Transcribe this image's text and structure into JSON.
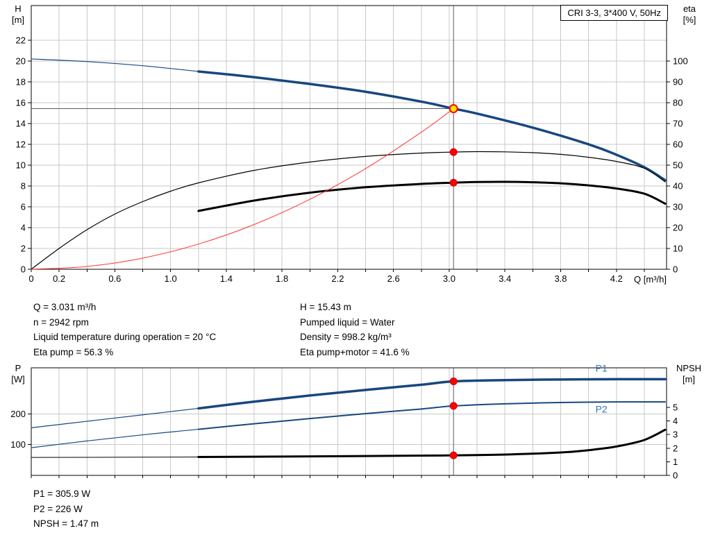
{
  "axis_titles": {
    "top_left_1": "H",
    "top_left_2": "[m]",
    "top_right_1": "eta",
    "top_right_2": "[%]",
    "x": "Q [m³/h]",
    "bottom_left_1": "P",
    "bottom_left_2": "[W]",
    "bottom_right_1": "NPSH",
    "bottom_right_2": "[m]"
  },
  "info_top_left": [
    "Q = 3.031 m³/h",
    "n = 2942 rpm",
    "Liquid temperature during operation = 20 °C",
    "Eta pump = 56.3 %"
  ],
  "info_top_right": [
    "H = 15.43 m",
    "Pumped liquid = Water",
    "Density = 998.2 kg/m³",
    "Eta pump+motor = 41.6 %"
  ],
  "info_bottom": [
    "P1 = 305.9 W",
    "P2 = 226 W",
    "NPSH = 1.47 m"
  ],
  "colors": {
    "curve_blue": "#17477e",
    "curve_black": "#000000",
    "curve_red": "#ff3333",
    "dot_red": "#ff0000",
    "duty_yellow": "#ffe600",
    "grid": "#c9c9c9",
    "label_blue": "#2e74b5",
    "duty_line": "#595959"
  },
  "chart_data": [
    {
      "type": "line",
      "title": "CRI 3-3, 3*400 V, 50Hz",
      "grid_color": "#c9c9c9",
      "x_axis": {
        "label": "Q [m³/h]",
        "min": 0,
        "max": 4.56,
        "grid_step": 0.2,
        "tick_values": [
          0,
          0.2,
          0.6,
          1.0,
          1.4,
          1.8,
          2.2,
          2.6,
          3.0,
          3.4,
          3.8,
          4.2
        ],
        "tick_labels": [
          "0",
          "0.2",
          "0.6",
          "1.0",
          "1.4",
          "1.8",
          "2.2",
          "2.6",
          "3.0",
          "3.4",
          "3.8",
          "4.2"
        ]
      },
      "y_left": {
        "label": "H [m]",
        "min": 0,
        "max": 25.33,
        "ticks": [
          0,
          2,
          4,
          6,
          8,
          10,
          12,
          14,
          16,
          18,
          20,
          22
        ],
        "tick_labels": [
          "0",
          "2",
          "4",
          "6",
          "8",
          "10",
          "12",
          "14",
          "16",
          "18",
          "20",
          "22"
        ]
      },
      "y_right": {
        "label": "eta [%]",
        "min": 0,
        "max": 126.67,
        "ticks": [
          0,
          10,
          20,
          30,
          40,
          50,
          60,
          70,
          80,
          90,
          100
        ]
      },
      "duty_lines": {
        "vertical_x": 3.031,
        "horizontal_y": 15.43,
        "horizontal_to_x": 3.031
      },
      "series": [
        {
          "name": "head-curve-low-flow",
          "axis": "left",
          "color": "#17477e",
          "width": 1.2,
          "points": [
            [
              0,
              20.2
            ],
            [
              0.4,
              19.95
            ],
            [
              0.8,
              19.55
            ],
            [
              1.2,
              19.0
            ]
          ]
        },
        {
          "name": "head-curve",
          "axis": "left",
          "color": "#17477e",
          "width": 3.5,
          "points": [
            [
              1.2,
              19.0
            ],
            [
              1.6,
              18.45
            ],
            [
              2.0,
              17.8
            ],
            [
              2.4,
              17.05
            ],
            [
              2.8,
              16.1
            ],
            [
              3.031,
              15.43
            ],
            [
              3.2,
              14.95
            ],
            [
              3.6,
              13.6
            ],
            [
              4.0,
              12.0
            ],
            [
              4.2,
              11.0
            ],
            [
              4.4,
              9.8
            ],
            [
              4.55,
              8.55
            ]
          ]
        },
        {
          "name": "eta-pump-curve",
          "axis": "right",
          "color": "#000000",
          "width": 1.2,
          "points": [
            [
              0,
              0
            ],
            [
              0.2,
              10
            ],
            [
              0.4,
              19
            ],
            [
              0.6,
              26.5
            ],
            [
              0.8,
              32.5
            ],
            [
              1.0,
              37.5
            ],
            [
              1.2,
              41.5
            ],
            [
              1.6,
              47.5
            ],
            [
              2.0,
              51.5
            ],
            [
              2.4,
              54.2
            ],
            [
              2.8,
              55.8
            ],
            [
              3.031,
              56.3
            ],
            [
              3.2,
              56.5
            ],
            [
              3.4,
              56.4
            ],
            [
              3.6,
              56.0
            ],
            [
              3.8,
              55.2
            ],
            [
              4.0,
              53.8
            ],
            [
              4.2,
              51.8
            ],
            [
              4.4,
              48.5
            ],
            [
              4.55,
              42.0
            ]
          ]
        },
        {
          "name": "eta-pump-motor-curve",
          "axis": "right",
          "color": "#000000",
          "width": 3,
          "points": [
            [
              1.2,
              28.0
            ],
            [
              1.6,
              33.0
            ],
            [
              2.0,
              36.8
            ],
            [
              2.4,
              39.4
            ],
            [
              2.8,
              41.0
            ],
            [
              3.031,
              41.6
            ],
            [
              3.2,
              41.9
            ],
            [
              3.4,
              42.0
            ],
            [
              3.6,
              41.8
            ],
            [
              3.8,
              41.3
            ],
            [
              4.0,
              40.3
            ],
            [
              4.2,
              38.8
            ],
            [
              4.4,
              36.3
            ],
            [
              4.55,
              31.5
            ]
          ]
        },
        {
          "name": "system-curve",
          "axis": "left",
          "color": "#ff3333",
          "width": 1,
          "points": [
            [
              0,
              0
            ],
            [
              0.4,
              0.27
            ],
            [
              0.8,
              1.07
            ],
            [
              1.2,
              2.42
            ],
            [
              1.6,
              4.3
            ],
            [
              2.0,
              6.72
            ],
            [
              2.4,
              9.67
            ],
            [
              2.8,
              13.17
            ],
            [
              3.031,
              15.43
            ]
          ]
        }
      ],
      "dots": [
        {
          "x": 3.031,
          "y": 56.3,
          "axis": "right",
          "type": "red",
          "name": "eta-pump-duty-dot"
        },
        {
          "x": 3.031,
          "y": 41.6,
          "axis": "right",
          "type": "red",
          "name": "eta-pump-motor-duty-dot"
        },
        {
          "x": 3.031,
          "y": 15.43,
          "axis": "left",
          "type": "duty",
          "name": "duty-point"
        }
      ],
      "labels": []
    },
    {
      "type": "line",
      "title": "Power and NPSH",
      "grid_color": "#c9c9c9",
      "x_axis": {
        "label": "Q [m³/h]",
        "min": 0,
        "max": 4.56,
        "grid_step": 0.2,
        "tick_values": [],
        "tick_labels": []
      },
      "y_left": {
        "label": "P [W]",
        "min": 0,
        "max": 350,
        "ticks": [
          100,
          200
        ],
        "tick_labels": [
          "100",
          "200"
        ]
      },
      "y_right": {
        "label": "NPSH [m]",
        "min": 0,
        "max": 7.9,
        "ticks": [
          0,
          1,
          2,
          3,
          4,
          5
        ]
      },
      "duty_lines": {
        "vertical_x": 3.031
      },
      "series": [
        {
          "name": "p1-curve-low-flow",
          "axis": "left",
          "color": "#17477e",
          "width": 1.2,
          "points": [
            [
              0,
              155
            ],
            [
              0.4,
              176
            ],
            [
              0.8,
              197
            ],
            [
              1.2,
              218
            ]
          ]
        },
        {
          "name": "p1-curve",
          "axis": "left",
          "color": "#17477e",
          "width": 3.5,
          "points": [
            [
              1.2,
              218
            ],
            [
              1.6,
              240
            ],
            [
              2.0,
              260
            ],
            [
              2.4,
              278
            ],
            [
              2.8,
              295
            ],
            [
              3.031,
              305.9
            ],
            [
              3.4,
              310
            ],
            [
              3.8,
              312
            ],
            [
              4.2,
              313
            ],
            [
              4.55,
              313
            ]
          ]
        },
        {
          "name": "p2-curve-low-flow",
          "axis": "left",
          "color": "#17477e",
          "width": 1.2,
          "points": [
            [
              0,
              90
            ],
            [
              0.4,
              112
            ],
            [
              0.8,
              132
            ],
            [
              1.2,
              150
            ]
          ]
        },
        {
          "name": "p2-curve",
          "axis": "left",
          "color": "#17477e",
          "width": 2,
          "points": [
            [
              1.2,
              150
            ],
            [
              1.6,
              168
            ],
            [
              2.0,
              185
            ],
            [
              2.4,
              201
            ],
            [
              2.8,
              216
            ],
            [
              3.031,
              226
            ],
            [
              3.4,
              233
            ],
            [
              3.8,
              237
            ],
            [
              4.2,
              239
            ],
            [
              4.55,
              239
            ]
          ]
        },
        {
          "name": "npsh-curve-low-flow",
          "axis": "right",
          "color": "#000000",
          "width": 1,
          "points": [
            [
              0,
              1.32
            ],
            [
              0.6,
              1.33
            ],
            [
              1.2,
              1.35
            ]
          ]
        },
        {
          "name": "npsh-curve",
          "axis": "right",
          "color": "#000000",
          "width": 3,
          "points": [
            [
              1.2,
              1.35
            ],
            [
              1.8,
              1.38
            ],
            [
              2.4,
              1.42
            ],
            [
              2.8,
              1.45
            ],
            [
              3.031,
              1.47
            ],
            [
              3.4,
              1.53
            ],
            [
              3.8,
              1.68
            ],
            [
              4.0,
              1.85
            ],
            [
              4.2,
              2.12
            ],
            [
              4.4,
              2.6
            ],
            [
              4.55,
              3.35
            ]
          ]
        }
      ],
      "dots": [
        {
          "x": 3.031,
          "y": 305.9,
          "axis": "left",
          "type": "red",
          "name": "p1-duty-dot"
        },
        {
          "x": 3.031,
          "y": 226,
          "axis": "left",
          "type": "red",
          "name": "p2-duty-dot"
        },
        {
          "x": 3.031,
          "y": 1.47,
          "axis": "right",
          "type": "red",
          "name": "npsh-duty-dot"
        }
      ],
      "labels": [
        {
          "x": 4.05,
          "y": 338,
          "axis": "left",
          "text": "P1",
          "color": "#2e74b5"
        },
        {
          "x": 4.05,
          "y": 204,
          "axis": "left",
          "text": "P2",
          "color": "#2e74b5"
        }
      ]
    }
  ]
}
